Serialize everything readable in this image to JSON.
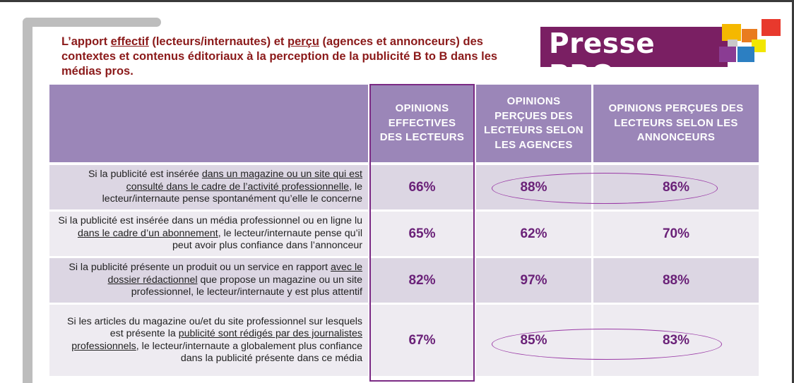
{
  "title": {
    "part1": "L’apport ",
    "effectif": "effectif",
    "part2": " (lecteurs/internautes) et ",
    "percu": "perçu",
    "part3": " (agences et annonceurs) des contextes et contenus éditoriaux à la perception de la publicité B to B dans les médias pros."
  },
  "logo": {
    "text_presse": "Presse",
    "text_pro": "PRO",
    "colors": [
      "#f5b800",
      "#e8392d",
      "#e97c1f",
      "#2c7fc2",
      "#8a3c93",
      "#f2e600",
      "#c9c9c9"
    ]
  },
  "table": {
    "headers": [
      "",
      "OPINIONS EFFECTIVES DES LECTEURS",
      "OPINIONS PERÇUES DES LECTEURS SELON LES AGENCES",
      "OPINIONS PERÇUES DES LECTEURS SELON LES ANNONCEURS"
    ],
    "rows": [
      {
        "s1": "Si la publicité est insérée ",
        "u": "dans un magazine ou un site qui est consulté dans le cadre de l’activité professionnelle",
        "s2": ", le lecteur/internaute pense spontanément qu’elle le concerne",
        "effective": "66%",
        "agences": "88%",
        "annonceurs": "86%"
      },
      {
        "s1": "Si la publicité est insérée dans un média professionnel ou en ligne lu ",
        "u": "dans le cadre d’un abonnement",
        "s2": ", le lecteur/internaute pense qu’il peut avoir plus confiance dans l’annonceur",
        "effective": "65%",
        "agences": "62%",
        "annonceurs": "70%"
      },
      {
        "s1": "Si la publicité présente un produit ou un service en rapport ",
        "u": "avec le dossier rédactionnel",
        "s2": " que propose un magazine ou un site professionnel, le lecteur/internaute y est plus attentif",
        "effective": "82%",
        "agences": "97%",
        "annonceurs": "88%"
      },
      {
        "s1": "Si les articles du magazine ou/et du site professionnel sur lesquels est présente la ",
        "u": "publicité sont rédigés par des journalistes professionnels",
        "s2": ", le lecteur/internaute a globalement plus confiance dans la publicité présente dans ce média",
        "effective": "67%",
        "agences": "85%",
        "annonceurs": "83%"
      }
    ]
  },
  "colors": {
    "title": "#8b1a1a",
    "header_bg": "#9b86b8",
    "row_dark": "#dcd6e3",
    "row_light": "#eeebf1",
    "value_text": "#6a2178",
    "highlight": "#7b2a84"
  }
}
